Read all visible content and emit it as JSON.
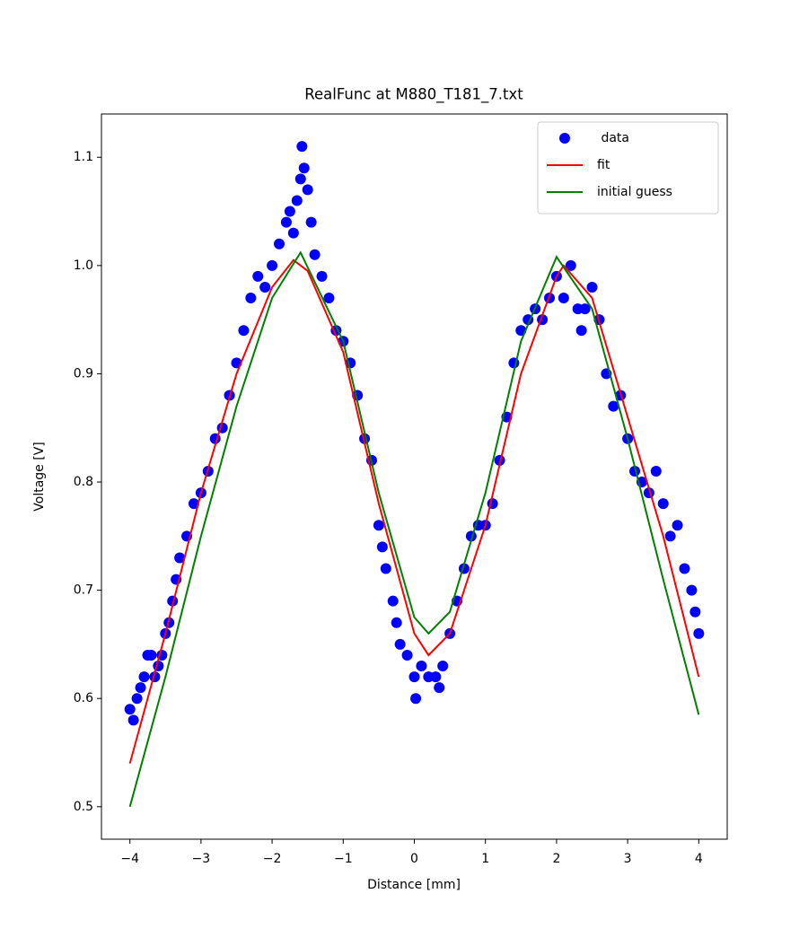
{
  "chart_data": {
    "type": "line",
    "title": "RealFunc at M880_T181_7.txt",
    "x_label": "Distance [mm]",
    "y_label": "Voltage [V]",
    "xlim": [
      -4.4,
      4.4
    ],
    "ylim": [
      0.47,
      1.14
    ],
    "xticks": [
      {
        "value": -4,
        "label": "−4"
      },
      {
        "value": -3,
        "label": "−3"
      },
      {
        "value": -2,
        "label": "−2"
      },
      {
        "value": -1,
        "label": "−1"
      },
      0,
      1,
      2,
      3,
      4
    ],
    "yticks": [
      0.5,
      0.6,
      0.7,
      0.8,
      0.9,
      {
        "value": 1,
        "label": "1.0"
      },
      1.1
    ],
    "legend": "upper right",
    "series": [
      {
        "name": " data",
        "color": "#0000ff",
        "style": "marker",
        "x": [
          -4.0,
          -3.95,
          -3.9,
          -3.85,
          -3.8,
          -3.75,
          -3.7,
          -3.65,
          -3.6,
          -3.55,
          -3.5,
          -3.45,
          -3.4,
          -3.35,
          -3.3,
          -3.2,
          -3.1,
          -3.0,
          -2.9,
          -2.8,
          -2.7,
          -2.6,
          -2.5,
          -2.4,
          -2.3,
          -2.2,
          -2.1,
          -2.0,
          -1.9,
          -1.8,
          -1.75,
          -1.7,
          -1.65,
          -1.6,
          -1.58,
          -1.55,
          -1.5,
          -1.45,
          -1.4,
          -1.3,
          -1.2,
          -1.1,
          -1.0,
          -0.9,
          -0.8,
          -0.7,
          -0.6,
          -0.5,
          -0.45,
          -0.4,
          -0.3,
          -0.25,
          -0.2,
          -0.1,
          0.0,
          0.02,
          0.1,
          0.2,
          0.3,
          0.35,
          0.4,
          0.5,
          0.6,
          0.7,
          0.8,
          0.9,
          1.0,
          1.1,
          1.2,
          1.3,
          1.4,
          1.5,
          1.6,
          1.7,
          1.8,
          1.9,
          2.0,
          2.1,
          2.2,
          2.3,
          2.35,
          2.4,
          2.5,
          2.6,
          2.7,
          2.8,
          2.9,
          3.0,
          3.1,
          3.2,
          3.3,
          3.4,
          3.5,
          3.6,
          3.7,
          3.8,
          3.9,
          3.95,
          4.0
        ],
        "values": [
          0.59,
          0.58,
          0.6,
          0.61,
          0.62,
          0.64,
          0.64,
          0.62,
          0.63,
          0.64,
          0.66,
          0.67,
          0.69,
          0.71,
          0.73,
          0.75,
          0.78,
          0.79,
          0.81,
          0.84,
          0.85,
          0.88,
          0.91,
          0.94,
          0.97,
          0.99,
          0.98,
          1.0,
          1.02,
          1.04,
          1.05,
          1.03,
          1.06,
          1.08,
          1.11,
          1.09,
          1.07,
          1.04,
          1.01,
          0.99,
          0.97,
          0.94,
          0.93,
          0.91,
          0.88,
          0.84,
          0.82,
          0.76,
          0.74,
          0.72,
          0.69,
          0.67,
          0.65,
          0.64,
          0.62,
          0.6,
          0.63,
          0.62,
          0.62,
          0.61,
          0.63,
          0.66,
          0.69,
          0.72,
          0.75,
          0.76,
          0.76,
          0.78,
          0.82,
          0.86,
          0.91,
          0.94,
          0.95,
          0.96,
          0.95,
          0.97,
          0.99,
          0.97,
          1.0,
          0.96,
          0.94,
          0.96,
          0.98,
          0.95,
          0.9,
          0.87,
          0.88,
          0.84,
          0.81,
          0.8,
          0.79,
          0.81,
          0.78,
          0.75,
          0.76,
          0.72,
          0.7,
          0.68,
          0.66
        ]
      },
      {
        "name": "fit",
        "color": "#ff0000",
        "style": "line",
        "x": [
          -4,
          -3.5,
          -3,
          -2.5,
          -2,
          -1.7,
          -1.5,
          -1,
          -0.5,
          0,
          0.2,
          0.5,
          1,
          1.5,
          2,
          2.1,
          2.5,
          3,
          3.5,
          4
        ],
        "values": [
          0.54,
          0.66,
          0.79,
          0.9,
          0.98,
          1.005,
          0.995,
          0.92,
          0.78,
          0.66,
          0.64,
          0.66,
          0.76,
          0.9,
          0.99,
          1.0,
          0.97,
          0.86,
          0.75,
          0.62
        ]
      },
      {
        "name": "initial guess",
        "color": "#008000",
        "style": "line",
        "x": [
          -4,
          -3.5,
          -3,
          -2.5,
          -2,
          -1.6,
          -1,
          -0.5,
          0,
          0.2,
          0.5,
          1,
          1.5,
          2,
          2.5,
          3,
          3.5,
          4
        ],
        "values": [
          0.5,
          0.62,
          0.75,
          0.87,
          0.97,
          1.012,
          0.93,
          0.79,
          0.675,
          0.66,
          0.68,
          0.79,
          0.93,
          1.008,
          0.96,
          0.84,
          0.71,
          0.585
        ]
      }
    ]
  }
}
